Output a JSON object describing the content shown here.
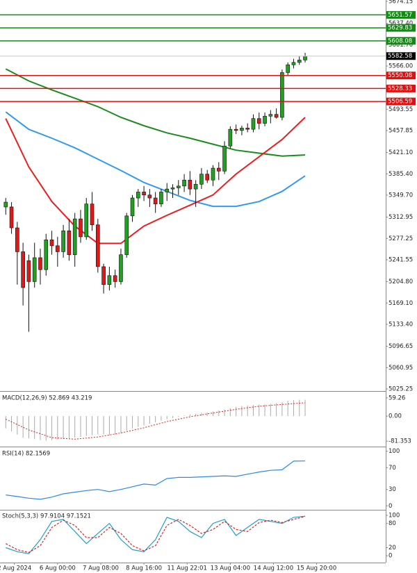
{
  "chart_data": [
    {
      "type": "candlestick",
      "xlim": [
        -1,
        66
      ],
      "ylim": [
        5025.25,
        5674.15
      ],
      "yticks": [
        5674.15,
        {
          "value": 5637.4,
          "label": "5637.40"
        },
        {
          "value": 5601.7,
          "label": "5601.70"
        },
        {
          "value": 5566,
          "label": "5566.00"
        },
        5493.55,
        5457.85,
        {
          "value": 5421.1,
          "label": "5421.10"
        },
        {
          "value": 5385.4,
          "label": "5385.40"
        },
        {
          "value": 5349.7,
          "label": "5349.70"
        },
        5312.95,
        5277.25,
        5241.55,
        {
          "value": 5204.8,
          "label": "5204.80"
        },
        {
          "value": 5169.1,
          "label": "5169.10"
        },
        {
          "value": 5133.4,
          "label": "5133.40"
        },
        5096.65,
        5060.95,
        5025.25
      ],
      "xticks": [
        {
          "value": 1.5,
          "label": "2 Aug 2024"
        },
        {
          "value": 9,
          "label": "6 Aug 00:00"
        },
        {
          "value": 16.5,
          "label": "7 Aug 08:00"
        },
        {
          "value": 24,
          "label": "8 Aug 16:00"
        },
        {
          "value": 31.5,
          "label": "11 Aug 22:01"
        },
        {
          "value": 39,
          "label": "13 Aug 04:00"
        },
        {
          "value": 46.5,
          "label": "14 Aug 12:00"
        },
        {
          "value": 54,
          "label": "15 Aug 20:00"
        }
      ],
      "up_color": "#22a022",
      "down_color": "#e01818",
      "open": [
        5330,
        5330,
        5295,
        5255,
        5240,
        5205,
        5245,
        5225,
        5275,
        5265,
        5255,
        5290,
        5250,
        5310,
        5280,
        5335,
        5300,
        5230,
        5200,
        5215,
        5205,
        5250,
        5315,
        5345,
        5355,
        5350,
        5345,
        5335,
        5355,
        5360,
        5362,
        5365,
        5375,
        5360,
        5368,
        5385,
        5375,
        5395,
        5390,
        5432,
        5460,
        5458,
        5462,
        5460,
        5478,
        5470,
        5482,
        5485,
        5480,
        5555,
        5568,
        5572,
        5576
      ],
      "high": [
        5345,
        5338,
        5305,
        5270,
        5250,
        5270,
        5260,
        5285,
        5290,
        5280,
        5300,
        5310,
        5320,
        5325,
        5345,
        5355,
        5310,
        5235,
        5230,
        5225,
        5260,
        5320,
        5350,
        5360,
        5365,
        5360,
        5355,
        5360,
        5370,
        5368,
        5375,
        5385,
        5390,
        5375,
        5395,
        5392,
        5400,
        5405,
        5440,
        5465,
        5468,
        5466,
        5470,
        5485,
        5488,
        5488,
        5492,
        5495,
        5560,
        5572,
        5578,
        5582,
        5588
      ],
      "low": [
        5317,
        5285,
        5200,
        5165,
        5121,
        5195,
        5200,
        5215,
        5250,
        5230,
        5245,
        5240,
        5230,
        5270,
        5275,
        5290,
        5220,
        5185,
        5190,
        5195,
        5200,
        5245,
        5305,
        5330,
        5340,
        5330,
        5320,
        5330,
        5340,
        5345,
        5350,
        5355,
        5350,
        5330,
        5360,
        5370,
        5365,
        5375,
        5385,
        5428,
        5452,
        5450,
        5455,
        5455,
        5460,
        5465,
        5470,
        5478,
        5475,
        5550,
        5562,
        5568,
        5572
      ],
      "close": [
        5338,
        5295,
        5255,
        5195,
        5205,
        5245,
        5225,
        5275,
        5265,
        5255,
        5290,
        5250,
        5310,
        5280,
        5335,
        5300,
        5230,
        5200,
        5215,
        5205,
        5250,
        5315,
        5345,
        5355,
        5350,
        5345,
        5335,
        5355,
        5360,
        5362,
        5365,
        5375,
        5360,
        5368,
        5385,
        5375,
        5395,
        5390,
        5432,
        5460,
        5458,
        5462,
        5460,
        5478,
        5470,
        5482,
        5485,
        5480,
        5555,
        5568,
        5572,
        5576,
        5582.58
      ],
      "lines": [
        {
          "color": "#1a8c1a",
          "x": [
            0,
            4,
            8,
            12,
            16,
            20,
            24,
            28,
            32,
            36,
            40,
            44,
            48,
            52
          ],
          "values": [
            5561,
            5541,
            5526,
            5512,
            5498,
            5480,
            5466,
            5454,
            5445,
            5435,
            5425,
            5420,
            5415,
            5417
          ]
        },
        {
          "color": "#3399ee",
          "x": [
            0,
            4,
            8,
            12,
            16,
            20,
            24,
            28,
            32,
            36,
            40,
            44,
            48,
            52
          ],
          "values": [
            5489,
            5460,
            5445,
            5429,
            5410,
            5391,
            5371,
            5356,
            5341,
            5331,
            5331,
            5339,
            5356,
            5382
          ]
        },
        {
          "color": "#ee1c1c",
          "x": [
            0,
            4,
            8,
            12,
            16,
            20,
            24,
            28,
            32,
            36,
            40,
            44,
            48,
            52
          ],
          "values": [
            5478,
            5397,
            5339,
            5298,
            5269,
            5269,
            5298,
            5316,
            5333,
            5350,
            5385,
            5414,
            5443,
            5480
          ]
        }
      ],
      "levels": [
        {
          "value": 5651.57,
          "color": "#138a13"
        },
        {
          "value": 5629.83,
          "color": "#138a13"
        },
        {
          "value": 5608.08,
          "color": "#138a13"
        },
        {
          "value": 5550.08,
          "color": "#e01010"
        },
        {
          "value": 5528.33,
          "color": "#e01010"
        },
        {
          "value": 5506.59,
          "color": "#e01010"
        }
      ],
      "last": 5582.58,
      "last_color": "#000000"
    },
    {
      "type": "macd",
      "title": "MACD(12,26,9) 52.869 43.219",
      "ylim": [
        -97,
        77
      ],
      "yticks": [
        59.26,
        {
          "value": 0,
          "label": "0.00"
        },
        -81.353
      ],
      "color": "#aaaaaa",
      "values": [
        -40,
        -50,
        -60,
        -70,
        -72,
        -75,
        -78,
        -80,
        -78,
        -76,
        -75,
        -72,
        -70,
        -68,
        -65,
        -62,
        -60,
        -60,
        -62,
        -60,
        -55,
        -48,
        -40,
        -35,
        -30,
        -25,
        -20,
        -15,
        -10,
        -6,
        -2,
        2,
        5,
        8,
        10,
        12,
        15,
        18,
        22,
        26,
        30,
        33,
        35,
        36,
        37,
        38,
        40,
        42,
        45,
        50,
        52,
        53,
        52.869
      ],
      "signal": {
        "color": "#e02020",
        "x": [
          0,
          4,
          8,
          12,
          16,
          20,
          24,
          28,
          32,
          36,
          40,
          44,
          48,
          52
        ],
        "values": [
          -10,
          -45,
          -70,
          -75,
          -68,
          -55,
          -38,
          -18,
          -2,
          10,
          22,
          32,
          38,
          43.219
        ]
      }
    },
    {
      "type": "line",
      "title": "RSI(14) 82.1569",
      "ylim": [
        -6,
        106
      ],
      "yticks": [
        100,
        70,
        30,
        0
      ],
      "series": [
        {
          "color": "#2a8ae8",
          "x": [
            0,
            2,
            4,
            6,
            8,
            10,
            12,
            14,
            16,
            18,
            20,
            22,
            24,
            26,
            28,
            30,
            32,
            34,
            36,
            38,
            40,
            42,
            44,
            46,
            48,
            50,
            52
          ],
          "values": [
            20,
            17,
            14,
            12,
            16,
            22,
            25,
            28,
            30,
            26,
            30,
            35,
            40,
            38,
            50,
            52,
            52,
            53,
            54,
            55,
            54,
            58,
            62,
            65,
            66,
            82,
            82.1569
          ]
        }
      ]
    },
    {
      "type": "line",
      "title": "Stoch(5,3,3) 97.9104 97.1521",
      "ylim": [
        -17,
        112
      ],
      "yticks": [
        100,
        80,
        20,
        0
      ],
      "series": [
        {
          "color": "#1fa0c8",
          "x": [
            0,
            2,
            4,
            6,
            8,
            10,
            12,
            14,
            16,
            18,
            20,
            22,
            24,
            26,
            28,
            30,
            32,
            34,
            36,
            38,
            40,
            42,
            44,
            46,
            48,
            50,
            52
          ],
          "values": [
            20,
            10,
            5,
            40,
            85,
            90,
            60,
            30,
            55,
            80,
            40,
            15,
            10,
            40,
            95,
            85,
            60,
            45,
            80,
            90,
            50,
            70,
            90,
            85,
            80,
            95,
            97.9104
          ]
        },
        {
          "color": "#e02020",
          "style": "dashed",
          "x": [
            0,
            2,
            4,
            6,
            8,
            10,
            12,
            14,
            16,
            18,
            20,
            22,
            24,
            26,
            28,
            30,
            32,
            34,
            36,
            38,
            40,
            42,
            44,
            46,
            48,
            50,
            52
          ],
          "values": [
            30,
            15,
            8,
            25,
            70,
            88,
            75,
            45,
            45,
            70,
            55,
            25,
            12,
            25,
            75,
            90,
            75,
            55,
            65,
            85,
            65,
            60,
            82,
            88,
            82,
            90,
            97.1521
          ]
        }
      ]
    }
  ]
}
